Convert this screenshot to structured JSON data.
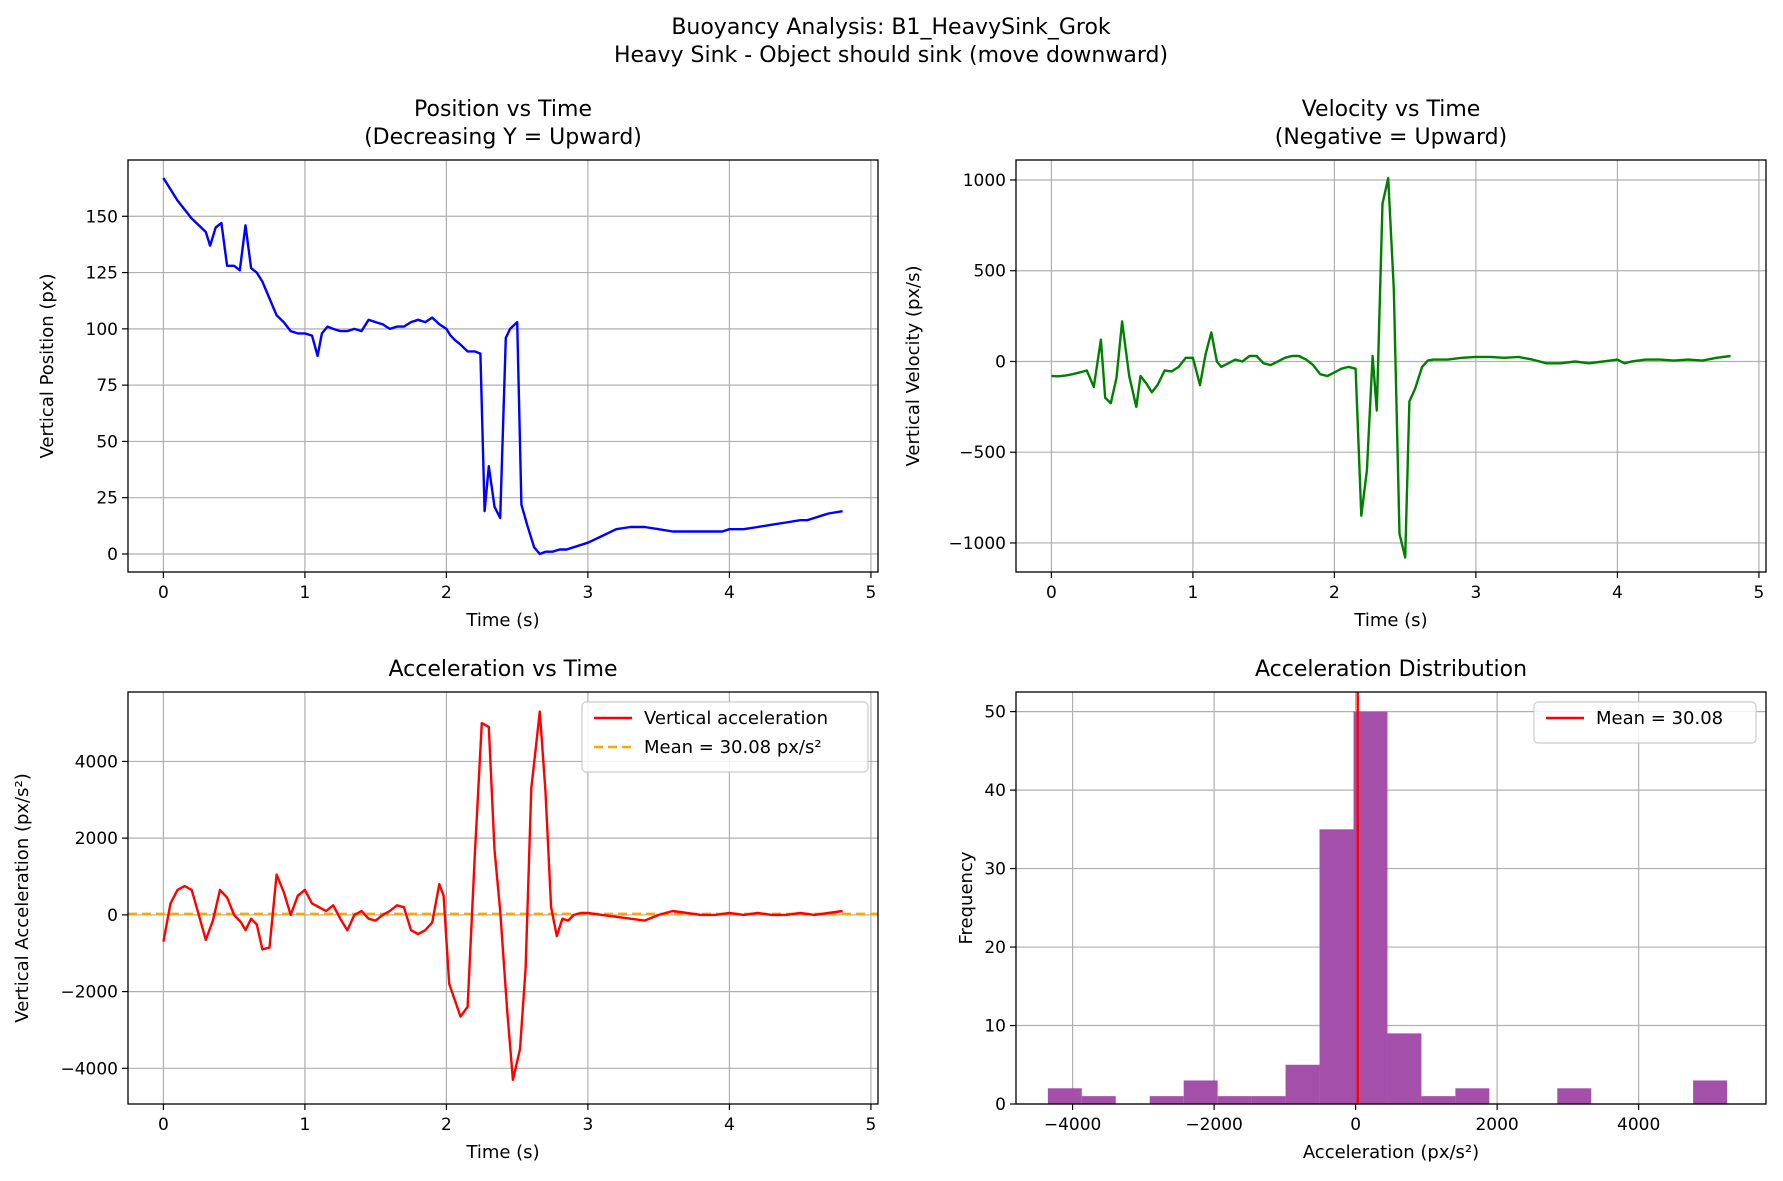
{
  "suptitle": {
    "line1": "Buoyancy Analysis: B1_HeavySink_Grok",
    "line2": "Heavy Sink - Object should sink (move downward)"
  },
  "colors": {
    "position": "#0000ff",
    "velocity": "#008000",
    "acceleration": "#ff0000",
    "mean_line": "#ffa500",
    "hist_bar": "#a24ca8",
    "hist_mean": "#ff0000",
    "grid": "#b0b0b0"
  },
  "chart_data": [
    {
      "id": "position",
      "type": "line",
      "title_line1": "Position vs Time",
      "title_line2": "(Decreasing Y = Upward)",
      "xlabel": "Time (s)",
      "ylabel": "Vertical Position (px)",
      "xlim": [
        -0.25,
        5.05
      ],
      "ylim": [
        -8,
        175
      ],
      "xticks": [
        0,
        1,
        2,
        3,
        4,
        5
      ],
      "yticks": [
        0,
        25,
        50,
        75,
        100,
        125,
        150
      ],
      "series": [
        {
          "name": "Position",
          "x": [
            0,
            0.05,
            0.1,
            0.15,
            0.2,
            0.25,
            0.3,
            0.33,
            0.37,
            0.41,
            0.45,
            0.5,
            0.54,
            0.58,
            0.62,
            0.66,
            0.7,
            0.74,
            0.8,
            0.85,
            0.9,
            0.95,
            1.0,
            1.05,
            1.09,
            1.12,
            1.16,
            1.2,
            1.25,
            1.3,
            1.35,
            1.4,
            1.45,
            1.5,
            1.55,
            1.6,
            1.65,
            1.7,
            1.75,
            1.8,
            1.85,
            1.9,
            1.95,
            2.0,
            2.03,
            2.06,
            2.1,
            2.15,
            2.2,
            2.24,
            2.27,
            2.3,
            2.34,
            2.38,
            2.42,
            2.45,
            2.5,
            2.53,
            2.57,
            2.62,
            2.66,
            2.7,
            2.75,
            2.8,
            2.85,
            2.9,
            3.0,
            3.1,
            3.2,
            3.3,
            3.4,
            3.5,
            3.6,
            3.7,
            3.8,
            3.9,
            3.95,
            4.0,
            4.05,
            4.1,
            4.2,
            4.3,
            4.4,
            4.5,
            4.55,
            4.6,
            4.65,
            4.7,
            4.8
          ],
          "y": [
            167,
            162,
            157,
            153,
            149,
            146,
            143,
            137,
            145,
            147,
            128,
            128,
            126,
            146,
            127,
            125,
            121,
            115,
            106,
            103,
            99,
            98,
            98,
            97,
            88,
            98,
            101,
            100,
            99,
            99,
            100,
            99,
            104,
            103,
            102,
            100,
            101,
            101,
            103,
            104,
            103,
            105,
            102,
            100,
            97,
            95,
            93,
            90,
            90,
            89,
            19,
            39,
            21,
            16,
            96,
            100,
            103,
            22,
            13,
            3,
            0,
            1,
            1,
            2,
            2,
            3,
            5,
            8,
            11,
            12,
            12,
            11,
            10,
            10,
            10,
            10,
            10,
            11,
            11,
            11,
            12,
            13,
            14,
            15,
            15,
            16,
            17,
            18,
            19
          ]
        }
      ]
    },
    {
      "id": "velocity",
      "type": "line",
      "title_line1": "Velocity vs Time",
      "title_line2": "(Negative = Upward)",
      "xlabel": "Time (s)",
      "ylabel": "Vertical Velocity (px/s)",
      "xlim": [
        -0.25,
        5.05
      ],
      "ylim": [
        -1160,
        1110
      ],
      "xticks": [
        0,
        1,
        2,
        3,
        4,
        5
      ],
      "yticks": [
        -1000,
        -500,
        0,
        500,
        1000
      ],
      "ytick_labels": [
        "−1000",
        "−500",
        "0",
        "500",
        "1000"
      ],
      "series": [
        {
          "name": "Velocity",
          "x": [
            0,
            0.05,
            0.1,
            0.15,
            0.2,
            0.25,
            0.3,
            0.35,
            0.38,
            0.42,
            0.46,
            0.5,
            0.55,
            0.6,
            0.63,
            0.67,
            0.71,
            0.75,
            0.8,
            0.85,
            0.9,
            0.95,
            1.0,
            1.05,
            1.09,
            1.13,
            1.17,
            1.2,
            1.25,
            1.3,
            1.35,
            1.4,
            1.45,
            1.5,
            1.55,
            1.6,
            1.65,
            1.7,
            1.75,
            1.8,
            1.85,
            1.9,
            1.95,
            2.0,
            2.05,
            2.1,
            2.15,
            2.19,
            2.23,
            2.27,
            2.3,
            2.34,
            2.38,
            2.42,
            2.46,
            2.5,
            2.53,
            2.57,
            2.62,
            2.66,
            2.7,
            2.8,
            2.9,
            3.0,
            3.1,
            3.2,
            3.3,
            3.4,
            3.5,
            3.6,
            3.7,
            3.8,
            3.9,
            4.0,
            4.05,
            4.1,
            4.2,
            4.3,
            4.4,
            4.5,
            4.6,
            4.7,
            4.8
          ],
          "y": [
            -80,
            -82,
            -78,
            -70,
            -60,
            -50,
            -140,
            120,
            -200,
            -230,
            -90,
            220,
            -80,
            -250,
            -80,
            -120,
            -170,
            -130,
            -50,
            -55,
            -30,
            20,
            20,
            -130,
            40,
            160,
            0,
            -30,
            -10,
            10,
            0,
            30,
            30,
            -10,
            -20,
            0,
            20,
            30,
            30,
            10,
            -20,
            -70,
            -80,
            -60,
            -40,
            -30,
            -40,
            -850,
            -600,
            30,
            -270,
            870,
            1010,
            400,
            -950,
            -1080,
            -220,
            -150,
            -30,
            5,
            10,
            10,
            20,
            25,
            25,
            20,
            25,
            10,
            -10,
            -10,
            0,
            -10,
            0,
            10,
            -10,
            0,
            10,
            10,
            5,
            10,
            5,
            20,
            30
          ]
        }
      ]
    },
    {
      "id": "acceleration",
      "type": "line",
      "title_line1": "Acceleration vs Time",
      "xlabel": "Time (s)",
      "ylabel": "Vertical Acceleration (px/s²)",
      "xlim": [
        -0.25,
        5.05
      ],
      "ylim": [
        -4930,
        5810
      ],
      "xticks": [
        0,
        1,
        2,
        3,
        4,
        5
      ],
      "yticks": [
        -4000,
        -2000,
        0,
        2000,
        4000
      ],
      "ytick_labels": [
        "−4000",
        "−2000",
        "0",
        "2000",
        "4000"
      ],
      "legend_position": "upper right",
      "legend": [
        "Vertical acceleration",
        "Mean = 30.08 px/s²"
      ],
      "mean": 30.08,
      "series": [
        {
          "name": "Vertical acceleration",
          "x": [
            0,
            0.05,
            0.1,
            0.15,
            0.2,
            0.25,
            0.3,
            0.35,
            0.4,
            0.45,
            0.5,
            0.55,
            0.58,
            0.62,
            0.66,
            0.7,
            0.75,
            0.8,
            0.85,
            0.9,
            0.95,
            1.0,
            1.05,
            1.1,
            1.15,
            1.2,
            1.25,
            1.3,
            1.35,
            1.4,
            1.45,
            1.5,
            1.55,
            1.6,
            1.65,
            1.7,
            1.75,
            1.8,
            1.85,
            1.9,
            1.95,
            1.98,
            2.02,
            2.1,
            2.15,
            2.2,
            2.25,
            2.3,
            2.34,
            2.38,
            2.43,
            2.47,
            2.52,
            2.56,
            2.6,
            2.66,
            2.7,
            2.74,
            2.78,
            2.82,
            2.86,
            2.9,
            2.95,
            3.0,
            3.1,
            3.2,
            3.3,
            3.4,
            3.5,
            3.6,
            3.7,
            3.8,
            3.9,
            4.0,
            4.1,
            4.2,
            4.3,
            4.4,
            4.5,
            4.6,
            4.7,
            4.8
          ],
          "y": [
            -700,
            300,
            650,
            750,
            650,
            0,
            -650,
            -150,
            650,
            450,
            0,
            -200,
            -400,
            -100,
            -250,
            -900,
            -850,
            1050,
            600,
            0,
            500,
            650,
            300,
            200,
            100,
            250,
            -100,
            -400,
            0,
            100,
            -100,
            -150,
            0,
            100,
            250,
            200,
            -400,
            -500,
            -400,
            -200,
            800,
            500,
            -1800,
            -2650,
            -2400,
            1500,
            5000,
            4900,
            1700,
            100,
            -2500,
            -4300,
            -3500,
            -1400,
            3300,
            5300,
            3200,
            200,
            -550,
            -100,
            -150,
            0,
            50,
            50,
            0,
            -50,
            -100,
            -150,
            0,
            100,
            50,
            0,
            0,
            50,
            0,
            50,
            0,
            0,
            50,
            0,
            50,
            100
          ]
        }
      ]
    },
    {
      "id": "distribution",
      "type": "bar",
      "title_line1": "Acceleration Distribution",
      "xlabel": "Acceleration (px/s²)",
      "ylabel": "Frequency",
      "xlim": [
        -4800,
        5800
      ],
      "ylim": [
        0,
        52.5
      ],
      "xticks": [
        -4000,
        -2000,
        0,
        2000,
        4000
      ],
      "xtick_labels": [
        "−4000",
        "−2000",
        "0",
        "2000",
        "4000"
      ],
      "yticks": [
        0,
        10,
        20,
        30,
        40,
        50
      ],
      "legend_position": "upper right",
      "legend": [
        "Mean = 30.08"
      ],
      "mean": 30.08,
      "bin_edges": [
        -4350,
        -3870,
        -3390,
        -2910,
        -2430,
        -1950,
        -1470,
        -990,
        -510,
        -30,
        450,
        930,
        1410,
        1890,
        2370,
        2850,
        3330,
        3810,
        4290,
        4770,
        5250
      ],
      "counts": [
        2,
        1,
        0,
        1,
        3,
        1,
        1,
        5,
        35,
        50,
        9,
        1,
        2,
        0,
        0,
        2,
        0,
        0,
        0,
        3
      ]
    }
  ]
}
